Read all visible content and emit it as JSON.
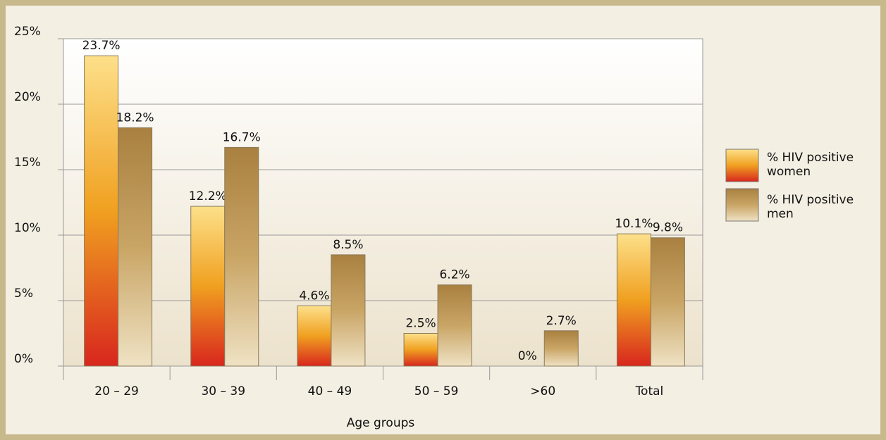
{
  "chart_data": {
    "type": "bar",
    "x_label": "Age groups",
    "categories": [
      "20 – 29",
      "30 – 39",
      "40 – 49",
      "50 – 59",
      ">60",
      "Total"
    ],
    "series": [
      {
        "name": "% HIV positive women",
        "color": "#f0a020",
        "values": [
          23.7,
          12.2,
          4.6,
          2.5,
          0,
          10.1
        ],
        "value_labels": [
          "23.7%",
          "12.2%",
          "4.6%",
          "2.5%",
          "0%",
          "10.1%"
        ]
      },
      {
        "name": "% HIV positive men",
        "color": "#c9a565",
        "values": [
          18.2,
          16.7,
          8.5,
          6.2,
          2.7,
          9.8
        ],
        "value_labels": [
          "18.2%",
          "16.7%",
          "8.5%",
          "6.2%",
          "2.7%",
          "9.8%"
        ]
      }
    ],
    "ylim": [
      0,
      25
    ],
    "yticks": [
      {
        "value": 0,
        "label": "0%"
      },
      {
        "value": 5,
        "label": "5%"
      },
      {
        "value": 10,
        "label": "10%"
      },
      {
        "value": 15,
        "label": "15%"
      },
      {
        "value": 20,
        "label": "20%"
      },
      {
        "value": 25,
        "label": "25%"
      }
    ],
    "grid": true
  }
}
